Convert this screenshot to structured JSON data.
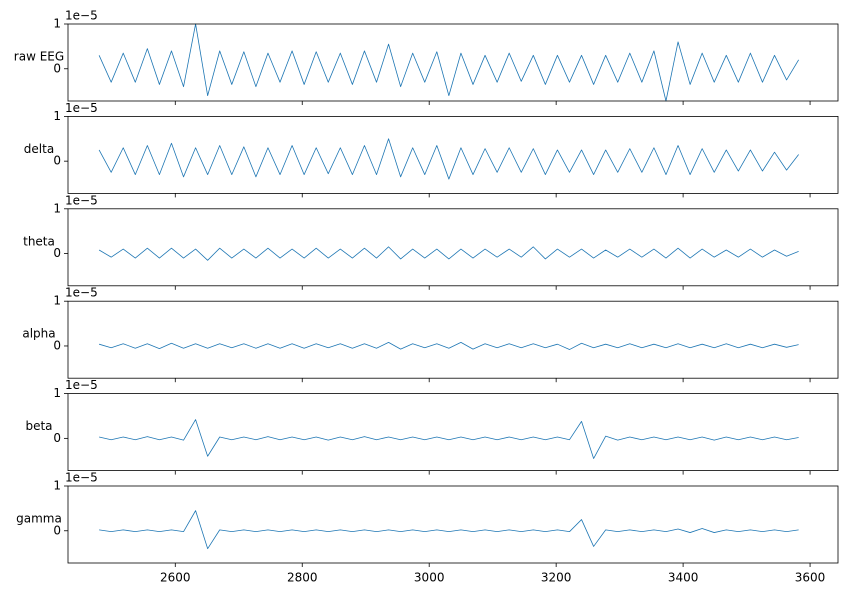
{
  "chart_data": [
    {
      "type": "line",
      "ylabel": "raw EEG",
      "offset_label": "1e−5",
      "xlim": [
        2431,
        3644
      ],
      "ylim": [
        -0.72,
        1.0
      ],
      "yticks": [
        0,
        1
      ],
      "xticks": [
        2600,
        2800,
        3000,
        3200,
        3400,
        3600
      ],
      "show_xtick_labels": false,
      "series": [
        {
          "color": "#1f77b4",
          "x": [
            2480,
            2499,
            2518,
            2537,
            2556,
            2575,
            2594,
            2613,
            2632,
            2651,
            2670,
            2689,
            2708,
            2727,
            2746,
            2765,
            2784,
            2803,
            2822,
            2841,
            2860,
            2879,
            2898,
            2917,
            2936,
            2955,
            2974,
            2993,
            3012,
            3031,
            3050,
            3069,
            3088,
            3107,
            3126,
            3145,
            3164,
            3183,
            3202,
            3221,
            3240,
            3259,
            3278,
            3297,
            3316,
            3335,
            3354,
            3373,
            3392,
            3411,
            3430,
            3449,
            3468,
            3487,
            3506,
            3525,
            3544,
            3563,
            3582
          ],
          "values": [
            0.3,
            -0.3,
            0.35,
            -0.3,
            0.45,
            -0.35,
            0.4,
            -0.4,
            1.0,
            -0.6,
            0.4,
            -0.35,
            0.38,
            -0.4,
            0.35,
            -0.3,
            0.4,
            -0.35,
            0.38,
            -0.3,
            0.35,
            -0.35,
            0.4,
            -0.3,
            0.55,
            -0.4,
            0.35,
            -0.3,
            0.38,
            -0.6,
            0.35,
            -0.35,
            0.3,
            -0.3,
            0.35,
            -0.28,
            0.3,
            -0.35,
            0.3,
            -0.3,
            0.3,
            -0.35,
            0.3,
            -0.3,
            0.35,
            -0.3,
            0.4,
            -0.72,
            0.6,
            -0.35,
            0.35,
            -0.3,
            0.3,
            -0.3,
            0.35,
            -0.3,
            0.3,
            -0.25,
            0.2
          ]
        }
      ]
    },
    {
      "type": "line",
      "ylabel": "delta",
      "offset_label": "1e−5",
      "xlim": [
        2431,
        3644
      ],
      "ylim": [
        -0.72,
        1.0
      ],
      "yticks": [
        0,
        1
      ],
      "xticks": [
        2600,
        2800,
        3000,
        3200,
        3400,
        3600
      ],
      "show_xtick_labels": false,
      "series": [
        {
          "color": "#1f77b4",
          "x": [
            2480,
            2499,
            2518,
            2537,
            2556,
            2575,
            2594,
            2613,
            2632,
            2651,
            2670,
            2689,
            2708,
            2727,
            2746,
            2765,
            2784,
            2803,
            2822,
            2841,
            2860,
            2879,
            2898,
            2917,
            2936,
            2955,
            2974,
            2993,
            3012,
            3031,
            3050,
            3069,
            3088,
            3107,
            3126,
            3145,
            3164,
            3183,
            3202,
            3221,
            3240,
            3259,
            3278,
            3297,
            3316,
            3335,
            3354,
            3373,
            3392,
            3411,
            3430,
            3449,
            3468,
            3487,
            3506,
            3525,
            3544,
            3563,
            3582
          ],
          "values": [
            0.25,
            -0.25,
            0.3,
            -0.3,
            0.35,
            -0.3,
            0.4,
            -0.35,
            0.3,
            -0.3,
            0.35,
            -0.3,
            0.32,
            -0.35,
            0.3,
            -0.3,
            0.35,
            -0.3,
            0.3,
            -0.28,
            0.3,
            -0.3,
            0.35,
            -0.3,
            0.5,
            -0.35,
            0.3,
            -0.3,
            0.35,
            -0.4,
            0.3,
            -0.3,
            0.28,
            -0.25,
            0.3,
            -0.25,
            0.28,
            -0.3,
            0.25,
            -0.25,
            0.25,
            -0.3,
            0.25,
            -0.25,
            0.28,
            -0.25,
            0.3,
            -0.3,
            0.35,
            -0.3,
            0.28,
            -0.25,
            0.25,
            -0.22,
            0.25,
            -0.22,
            0.2,
            -0.2,
            0.15
          ]
        }
      ]
    },
    {
      "type": "line",
      "ylabel": "theta",
      "offset_label": "1e−5",
      "xlim": [
        2431,
        3644
      ],
      "ylim": [
        -0.72,
        1.0
      ],
      "yticks": [
        0,
        1
      ],
      "xticks": [
        2600,
        2800,
        3000,
        3200,
        3400,
        3600
      ],
      "show_xtick_labels": false,
      "series": [
        {
          "color": "#1f77b4",
          "x": [
            2480,
            2499,
            2518,
            2537,
            2556,
            2575,
            2594,
            2613,
            2632,
            2651,
            2670,
            2689,
            2708,
            2727,
            2746,
            2765,
            2784,
            2803,
            2822,
            2841,
            2860,
            2879,
            2898,
            2917,
            2936,
            2955,
            2974,
            2993,
            3012,
            3031,
            3050,
            3069,
            3088,
            3107,
            3126,
            3145,
            3164,
            3183,
            3202,
            3221,
            3240,
            3259,
            3278,
            3297,
            3316,
            3335,
            3354,
            3373,
            3392,
            3411,
            3430,
            3449,
            3468,
            3487,
            3506,
            3525,
            3544,
            3563,
            3582
          ],
          "values": [
            0.08,
            -0.08,
            0.1,
            -0.1,
            0.12,
            -0.1,
            0.12,
            -0.1,
            0.1,
            -0.15,
            0.12,
            -0.1,
            0.1,
            -0.1,
            0.12,
            -0.1,
            0.1,
            -0.1,
            0.12,
            -0.1,
            0.1,
            -0.1,
            0.12,
            -0.1,
            0.15,
            -0.12,
            0.1,
            -0.1,
            0.1,
            -0.12,
            0.1,
            -0.1,
            0.1,
            -0.08,
            0.1,
            -0.08,
            0.15,
            -0.12,
            0.1,
            -0.08,
            0.1,
            -0.1,
            0.08,
            -0.08,
            0.1,
            -0.08,
            0.1,
            -0.1,
            0.12,
            -0.1,
            0.1,
            -0.08,
            0.08,
            -0.08,
            0.1,
            -0.08,
            0.08,
            -0.06,
            0.05
          ]
        }
      ]
    },
    {
      "type": "line",
      "ylabel": "alpha",
      "offset_label": "1e−5",
      "xlim": [
        2431,
        3644
      ],
      "ylim": [
        -0.72,
        1.0
      ],
      "yticks": [
        0,
        1
      ],
      "xticks": [
        2600,
        2800,
        3000,
        3200,
        3400,
        3600
      ],
      "show_xtick_labels": false,
      "series": [
        {
          "color": "#1f77b4",
          "x": [
            2480,
            2499,
            2518,
            2537,
            2556,
            2575,
            2594,
            2613,
            2632,
            2651,
            2670,
            2689,
            2708,
            2727,
            2746,
            2765,
            2784,
            2803,
            2822,
            2841,
            2860,
            2879,
            2898,
            2917,
            2936,
            2955,
            2974,
            2993,
            3012,
            3031,
            3050,
            3069,
            3088,
            3107,
            3126,
            3145,
            3164,
            3183,
            3202,
            3221,
            3240,
            3259,
            3278,
            3297,
            3316,
            3335,
            3354,
            3373,
            3392,
            3411,
            3430,
            3449,
            3468,
            3487,
            3506,
            3525,
            3544,
            3563,
            3582
          ],
          "values": [
            0.04,
            -0.04,
            0.05,
            -0.05,
            0.05,
            -0.06,
            0.06,
            -0.05,
            0.05,
            -0.05,
            0.05,
            -0.04,
            0.05,
            -0.05,
            0.05,
            -0.05,
            0.05,
            -0.05,
            0.05,
            -0.04,
            0.05,
            -0.05,
            0.05,
            -0.05,
            0.08,
            -0.07,
            0.05,
            -0.04,
            0.05,
            -0.05,
            0.08,
            -0.07,
            0.05,
            -0.04,
            0.05,
            -0.04,
            0.05,
            -0.04,
            0.04,
            -0.08,
            0.06,
            -0.04,
            0.04,
            -0.04,
            0.05,
            -0.04,
            0.04,
            -0.04,
            0.05,
            -0.04,
            0.04,
            -0.04,
            0.05,
            -0.04,
            0.04,
            -0.04,
            0.04,
            -0.03,
            0.03
          ]
        }
      ]
    },
    {
      "type": "line",
      "ylabel": "beta",
      "offset_label": "1e−5",
      "xlim": [
        2431,
        3644
      ],
      "ylim": [
        -0.72,
        1.0
      ],
      "yticks": [
        0,
        1
      ],
      "xticks": [
        2600,
        2800,
        3000,
        3200,
        3400,
        3600
      ],
      "show_xtick_labels": false,
      "series": [
        {
          "color": "#1f77b4",
          "x": [
            2480,
            2499,
            2518,
            2537,
            2556,
            2575,
            2594,
            2613,
            2632,
            2651,
            2670,
            2689,
            2708,
            2727,
            2746,
            2765,
            2784,
            2803,
            2822,
            2841,
            2860,
            2879,
            2898,
            2917,
            2936,
            2955,
            2974,
            2993,
            3012,
            3031,
            3050,
            3069,
            3088,
            3107,
            3126,
            3145,
            3164,
            3183,
            3202,
            3221,
            3240,
            3259,
            3278,
            3297,
            3316,
            3335,
            3354,
            3373,
            3392,
            3411,
            3430,
            3449,
            3468,
            3487,
            3506,
            3525,
            3544,
            3563,
            3582
          ],
          "values": [
            0.03,
            -0.03,
            0.03,
            -0.03,
            0.04,
            -0.03,
            0.03,
            -0.04,
            0.42,
            -0.4,
            0.03,
            -0.03,
            0.03,
            -0.03,
            0.04,
            -0.03,
            0.03,
            -0.03,
            0.03,
            -0.04,
            0.03,
            -0.03,
            0.04,
            -0.03,
            0.03,
            -0.03,
            0.03,
            -0.03,
            0.03,
            -0.03,
            0.03,
            -0.03,
            0.03,
            -0.03,
            0.03,
            -0.03,
            0.03,
            -0.03,
            0.03,
            -0.03,
            0.38,
            -0.45,
            0.05,
            -0.04,
            0.03,
            -0.03,
            0.03,
            -0.03,
            0.03,
            -0.03,
            0.03,
            -0.04,
            0.03,
            -0.03,
            0.03,
            -0.03,
            0.03,
            -0.03,
            0.02
          ]
        }
      ]
    },
    {
      "type": "line",
      "ylabel": "gamma",
      "offset_label": "1e−5",
      "xlim": [
        2431,
        3644
      ],
      "ylim": [
        -0.72,
        1.0
      ],
      "yticks": [
        0,
        1
      ],
      "xticks": [
        2600,
        2800,
        3000,
        3200,
        3400,
        3600
      ],
      "show_xtick_labels": true,
      "series": [
        {
          "color": "#1f77b4",
          "x": [
            2480,
            2499,
            2518,
            2537,
            2556,
            2575,
            2594,
            2613,
            2632,
            2651,
            2670,
            2689,
            2708,
            2727,
            2746,
            2765,
            2784,
            2803,
            2822,
            2841,
            2860,
            2879,
            2898,
            2917,
            2936,
            2955,
            2974,
            2993,
            3012,
            3031,
            3050,
            3069,
            3088,
            3107,
            3126,
            3145,
            3164,
            3183,
            3202,
            3221,
            3240,
            3259,
            3278,
            3297,
            3316,
            3335,
            3354,
            3373,
            3392,
            3411,
            3430,
            3449,
            3468,
            3487,
            3506,
            3525,
            3544,
            3563,
            3582
          ],
          "values": [
            0.02,
            -0.02,
            0.02,
            -0.02,
            0.02,
            -0.02,
            0.02,
            -0.02,
            0.45,
            -0.4,
            0.02,
            -0.02,
            0.02,
            -0.02,
            0.02,
            -0.02,
            0.02,
            -0.02,
            0.02,
            -0.02,
            0.02,
            -0.02,
            0.02,
            -0.02,
            0.02,
            -0.02,
            0.02,
            -0.02,
            0.02,
            -0.02,
            0.02,
            -0.02,
            0.02,
            -0.02,
            0.02,
            -0.02,
            0.02,
            -0.02,
            0.02,
            -0.02,
            0.25,
            -0.35,
            0.02,
            -0.02,
            0.02,
            -0.02,
            0.02,
            -0.02,
            0.04,
            -0.04,
            0.05,
            -0.04,
            0.02,
            -0.02,
            0.02,
            -0.02,
            0.02,
            -0.02,
            0.02
          ]
        }
      ]
    }
  ]
}
